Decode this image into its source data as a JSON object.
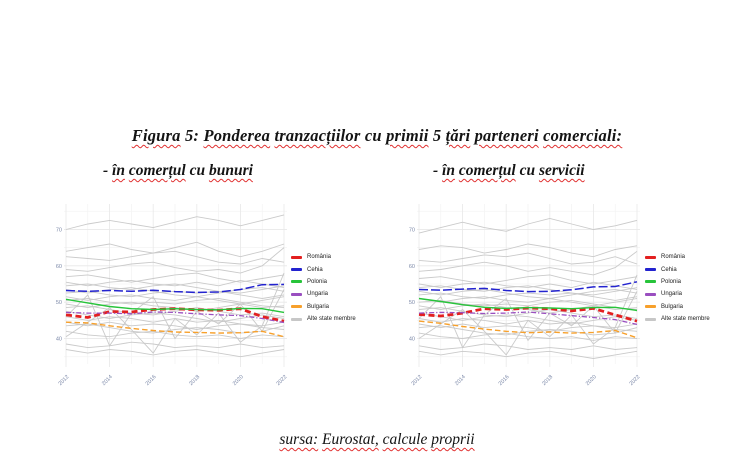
{
  "page": {
    "title": "Figura 5: Ponderea tranzacțiilor cu primii 5 țări parteneri comerciali:",
    "subtitle_left": "- în comerțul cu bunuri",
    "subtitle_right": "- în comerțul cu servicii",
    "source": "sursa: Eurostat, calcule proprii",
    "underline_color": "#e03030"
  },
  "chart_data": [
    {
      "type": "line",
      "title": "- în comerțul cu bunuri",
      "xlabel": "",
      "ylabel": "",
      "x": [
        2012,
        2013,
        2014,
        2015,
        2016,
        2017,
        2018,
        2019,
        2020,
        2021,
        2022
      ],
      "x_ticks": [
        2012,
        2014,
        2016,
        2018,
        2020,
        2022
      ],
      "y_ticks": [
        40,
        50,
        60,
        70
      ],
      "grid_minor_x": [
        2013,
        2015,
        2017,
        2019,
        2021
      ],
      "grid_minor_y": [
        35,
        45,
        55,
        65,
        75
      ],
      "ylim": [
        33,
        77
      ],
      "grid": true,
      "legend_position": "right",
      "series": [
        {
          "name": "România",
          "color": "#e32020",
          "dash": "6,3.5",
          "width": 2.8,
          "values": [
            46.5,
            45.8,
            47.4,
            47.3,
            48.0,
            48.2,
            47.9,
            47.8,
            48.2,
            46.0,
            44.8
          ]
        },
        {
          "name": "Cehia",
          "color": "#2323cf",
          "dash": "9,3",
          "width": 1.5,
          "values": [
            53.2,
            53.0,
            53.2,
            53.0,
            53.3,
            52.9,
            52.7,
            52.8,
            53.5,
            54.8,
            54.9
          ]
        },
        {
          "name": "Polonia",
          "color": "#27c43a",
          "dash": "",
          "width": 1.4,
          "values": [
            50.8,
            49.8,
            48.8,
            48.2,
            48.0,
            48.2,
            48.0,
            47.9,
            48.3,
            48.2,
            47.2
          ]
        },
        {
          "name": "Ungaria",
          "color": "#9a4fc0",
          "dash": "5,2,1.2,2",
          "width": 1.3,
          "values": [
            47.2,
            47.0,
            47.0,
            46.8,
            47.3,
            47.2,
            46.8,
            46.5,
            46.3,
            45.5,
            44.4
          ]
        },
        {
          "name": "Bulgaria",
          "color": "#f7a02b",
          "dash": "5.5,3",
          "width": 1.4,
          "values": [
            44.5,
            44.3,
            43.5,
            42.8,
            42.2,
            41.8,
            41.7,
            41.5,
            41.6,
            42.0,
            40.5
          ]
        }
      ],
      "background": {
        "name": "Alte state membre",
        "color": "#c7c7c7",
        "values": [
          [
            70,
            71.5,
            72.5,
            71.5,
            70.5,
            72,
            73.5,
            72.5,
            71,
            72.5,
            74
          ],
          [
            64,
            65,
            66,
            64.5,
            63.5,
            65,
            66.5,
            64,
            62.5,
            64,
            66
          ],
          [
            62.5,
            62,
            61.5,
            62.5,
            63.5,
            64,
            62.5,
            61,
            60.5,
            62,
            61
          ],
          [
            59,
            58.5,
            59.5,
            60.5,
            61,
            59.5,
            58.5,
            59,
            58,
            60,
            65
          ],
          [
            57,
            57.5,
            56.5,
            55.5,
            56.5,
            57.5,
            58,
            56.5,
            55.5,
            56.5,
            57.5
          ],
          [
            55.5,
            54.5,
            55.5,
            56,
            55,
            54.5,
            55.5,
            54.5,
            56,
            55,
            54
          ],
          [
            54.5,
            55,
            54,
            53.5,
            54.5,
            55,
            54,
            53,
            52.5,
            53.5,
            54.5
          ],
          [
            53.5,
            52.5,
            53.5,
            54,
            53,
            52,
            51.5,
            52.5,
            53.5,
            54,
            53
          ],
          [
            52.5,
            53,
            52,
            51.5,
            52.5,
            53,
            52.5,
            53,
            52,
            51,
            52
          ],
          [
            51.5,
            50.5,
            51.5,
            52,
            51,
            50.5,
            51.5,
            50.5,
            49.5,
            50.5,
            51.5
          ],
          [
            50.5,
            51,
            50,
            49.5,
            50,
            49.5,
            50.5,
            51,
            50,
            49,
            48.5
          ],
          [
            49.5,
            48.5,
            49.5,
            50,
            49,
            48.5,
            47.5,
            48.5,
            49.5,
            48.5,
            49
          ],
          [
            48.5,
            49,
            48,
            47,
            46.5,
            47.5,
            48.5,
            47.5,
            46.5,
            47,
            46
          ],
          [
            47.5,
            46.5,
            45.5,
            46.5,
            47,
            46.5,
            45.5,
            44.5,
            45.5,
            46.5,
            45.5
          ],
          [
            46,
            45,
            46,
            45.5,
            44.5,
            45.5,
            44.5,
            45,
            44,
            43.5,
            44.5
          ],
          [
            44.5,
            43.5,
            44.5,
            43.5,
            44,
            43.5,
            42.5,
            43.5,
            44,
            43,
            42.5
          ],
          [
            43.5,
            44,
            43,
            42,
            41.5,
            42.5,
            43,
            42.5,
            41.5,
            42,
            43.5
          ],
          [
            42,
            41,
            40.5,
            41.5,
            42,
            41,
            40.5,
            41,
            40,
            41,
            40.5
          ],
          [
            38.5,
            37.5,
            38,
            39,
            38.5,
            37.5,
            38,
            37.5,
            38.5,
            37.5,
            38
          ],
          [
            37,
            36,
            37,
            36.5,
            35.5,
            36.5,
            37,
            36,
            35,
            36,
            37
          ],
          [
            46,
            52,
            38,
            47,
            51.5,
            40,
            47.5,
            44,
            49.5,
            42,
            53.5
          ],
          [
            40.5,
            44.5,
            48.5,
            42.5,
            36,
            45.5,
            41,
            47,
            39,
            43.5,
            58
          ]
        ]
      },
      "legend": [
        {
          "label": "România",
          "color": "#e32020"
        },
        {
          "label": "Cehia",
          "color": "#2323cf"
        },
        {
          "label": "Polonia",
          "color": "#27c43a"
        },
        {
          "label": "Ungaria",
          "color": "#9a4fc0"
        },
        {
          "label": "Bulgaria",
          "color": "#f7a02b"
        },
        {
          "label": "Alte state membre",
          "color": "#c7c7c7"
        }
      ]
    },
    {
      "type": "line",
      "title": "- în comerțul cu servicii",
      "xlabel": "",
      "ylabel": "",
      "x": [
        2012,
        2013,
        2014,
        2015,
        2016,
        2017,
        2018,
        2019,
        2020,
        2021,
        2022
      ],
      "x_ticks": [
        2012,
        2014,
        2016,
        2018,
        2020,
        2022
      ],
      "y_ticks": [
        40,
        50,
        60,
        70
      ],
      "grid_minor_x": [
        2013,
        2015,
        2017,
        2019,
        2021
      ],
      "grid_minor_y": [
        35,
        45,
        55,
        65,
        75
      ],
      "ylim": [
        33,
        77
      ],
      "grid": true,
      "legend_position": "right",
      "series": [
        {
          "name": "România",
          "color": "#e32020",
          "dash": "6,3.5",
          "width": 2.8,
          "values": [
            46.6,
            46.2,
            47.0,
            48.2,
            48.0,
            48.4,
            48.2,
            47.6,
            48.3,
            46.5,
            44.8
          ]
        },
        {
          "name": "Cehia",
          "color": "#2323cf",
          "dash": "9,3",
          "width": 1.5,
          "values": [
            53.5,
            53.3,
            53.6,
            53.8,
            53.2,
            52.9,
            53.0,
            53.4,
            54.2,
            54.3,
            55.6
          ]
        },
        {
          "name": "Polonia",
          "color": "#27c43a",
          "dash": "",
          "width": 1.4,
          "values": [
            51.0,
            50.2,
            49.3,
            48.6,
            48.3,
            48.5,
            48.4,
            48.2,
            48.5,
            48.6,
            47.7
          ]
        },
        {
          "name": "Ungaria",
          "color": "#9a4fc0",
          "dash": "5,2,1.2,2",
          "width": 1.3,
          "values": [
            47.0,
            47.2,
            47.1,
            46.9,
            47.0,
            47.3,
            46.8,
            46.3,
            45.8,
            45.2,
            43.9
          ]
        },
        {
          "name": "Bulgaria",
          "color": "#f7a02b",
          "dash": "5.5,3",
          "width": 1.4,
          "values": [
            44.8,
            44.2,
            43.3,
            42.6,
            42.0,
            41.6,
            41.8,
            41.5,
            41.7,
            42.2,
            40.2
          ]
        }
      ],
      "background": {
        "name": "Alte state membre",
        "color": "#c7c7c7",
        "values": [
          [
            69,
            70.5,
            72,
            70.5,
            69.5,
            71.5,
            73,
            71.5,
            70,
            71,
            72.5
          ],
          [
            64.5,
            65.5,
            65,
            63.5,
            64.5,
            66,
            65,
            63.5,
            62.5,
            64.5,
            65.5
          ],
          [
            61.5,
            61,
            62,
            63,
            62.5,
            63.5,
            62,
            60.5,
            61,
            62.5,
            60.5
          ],
          [
            58.5,
            59,
            60,
            61,
            60,
            58.5,
            59.5,
            58.5,
            57.5,
            59.5,
            64
          ],
          [
            56.5,
            57,
            56,
            55,
            56,
            57,
            57.5,
            56,
            55,
            56,
            57
          ],
          [
            55,
            54,
            55,
            55.5,
            54.5,
            54,
            55,
            54,
            55.5,
            54.5,
            53.5
          ],
          [
            54,
            54.5,
            53.5,
            53,
            54,
            54.5,
            53.5,
            52.5,
            52,
            53,
            54
          ],
          [
            53,
            52,
            53,
            53.5,
            52.5,
            51.5,
            51,
            52,
            53,
            53.5,
            52.5
          ],
          [
            52,
            52.5,
            51.5,
            51,
            52,
            52.5,
            52,
            52.5,
            51.5,
            50.5,
            51.5
          ],
          [
            51,
            50,
            51,
            51.5,
            50.5,
            50,
            51,
            50,
            49,
            50,
            51
          ],
          [
            50,
            50.5,
            49.5,
            49,
            49.5,
            49,
            50,
            50.5,
            49.5,
            48.5,
            48
          ],
          [
            49,
            48,
            49,
            49.5,
            48.5,
            48,
            47,
            48,
            49,
            48,
            48.5
          ],
          [
            48,
            48.5,
            47.5,
            46.5,
            46,
            47,
            48,
            47,
            46,
            46.5,
            45.5
          ],
          [
            47,
            46,
            45,
            46,
            46.5,
            46,
            45,
            44,
            45,
            46,
            45
          ],
          [
            45.5,
            44.5,
            45.5,
            45,
            44,
            45,
            44,
            44.5,
            43.5,
            43,
            44
          ],
          [
            44,
            43,
            44,
            43,
            43.5,
            43,
            42,
            43,
            43.5,
            42.5,
            42
          ],
          [
            43,
            43.5,
            42.5,
            41.5,
            41,
            42,
            42.5,
            42,
            41,
            41.5,
            43
          ],
          [
            41.5,
            40.5,
            40,
            41,
            41.5,
            40.5,
            40,
            40.5,
            39.5,
            40.5,
            40
          ],
          [
            38,
            37,
            37.5,
            38.5,
            38,
            37,
            37.5,
            37,
            38,
            37,
            37.5
          ],
          [
            36.5,
            35.5,
            36.5,
            36,
            35,
            36,
            36.5,
            35.5,
            34.5,
            35.5,
            36.5
          ],
          [
            45.5,
            51.5,
            37.5,
            46.5,
            51,
            39.5,
            47,
            43.5,
            49,
            41.5,
            53
          ],
          [
            40,
            44,
            48,
            42,
            35.5,
            45,
            40.5,
            46.5,
            38.5,
            43,
            57.5
          ]
        ]
      },
      "legend": [
        {
          "label": "România",
          "color": "#e32020"
        },
        {
          "label": "Cehia",
          "color": "#2323cf"
        },
        {
          "label": "Polonia",
          "color": "#27c43a"
        },
        {
          "label": "Ungaria",
          "color": "#9a4fc0"
        },
        {
          "label": "Bulgaria",
          "color": "#f7a02b"
        },
        {
          "label": "Alte state membre",
          "color": "#c7c7c7"
        }
      ]
    }
  ]
}
